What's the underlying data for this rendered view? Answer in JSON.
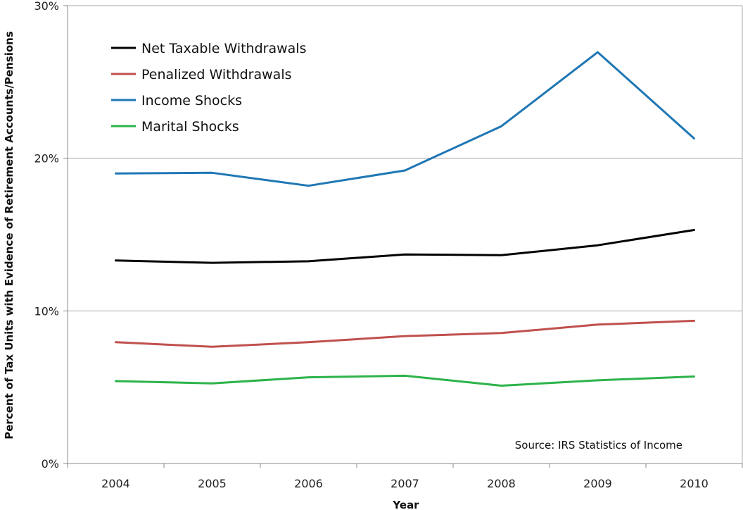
{
  "chart_data": {
    "type": "line",
    "title": "",
    "xlabel": "Year",
    "ylabel": "Percent of Tax Units with Evidence of Retirement Accounts/Pensions",
    "categories": [
      "2004",
      "2005",
      "2006",
      "2007",
      "2008",
      "2009",
      "2010"
    ],
    "ylim": [
      0,
      30
    ],
    "yticks": [
      0,
      10,
      20,
      30
    ],
    "ytick_labels": [
      "0%",
      "10%",
      "20%",
      "30%"
    ],
    "grid": "horizontal",
    "legend_position": "top-left",
    "series": [
      {
        "name": "Net Taxable Withdrawals",
        "color": "#000000",
        "values": [
          13.3,
          13.15,
          13.25,
          13.7,
          13.65,
          14.3,
          15.3
        ]
      },
      {
        "name": "Penalized Withdrawals",
        "color": "#c0504d",
        "values": [
          7.95,
          7.65,
          7.95,
          8.35,
          8.55,
          9.1,
          9.35
        ]
      },
      {
        "name": "Income Shocks",
        "color": "#1f77b4",
        "values": [
          19.0,
          19.05,
          18.2,
          19.2,
          22.1,
          26.95,
          21.3
        ]
      },
      {
        "name": "Marital Shocks",
        "color": "#2db34a",
        "values": [
          5.4,
          5.25,
          5.65,
          5.75,
          5.1,
          5.45,
          5.7
        ]
      }
    ],
    "annotation": "Source: IRS Statistics of Income"
  }
}
